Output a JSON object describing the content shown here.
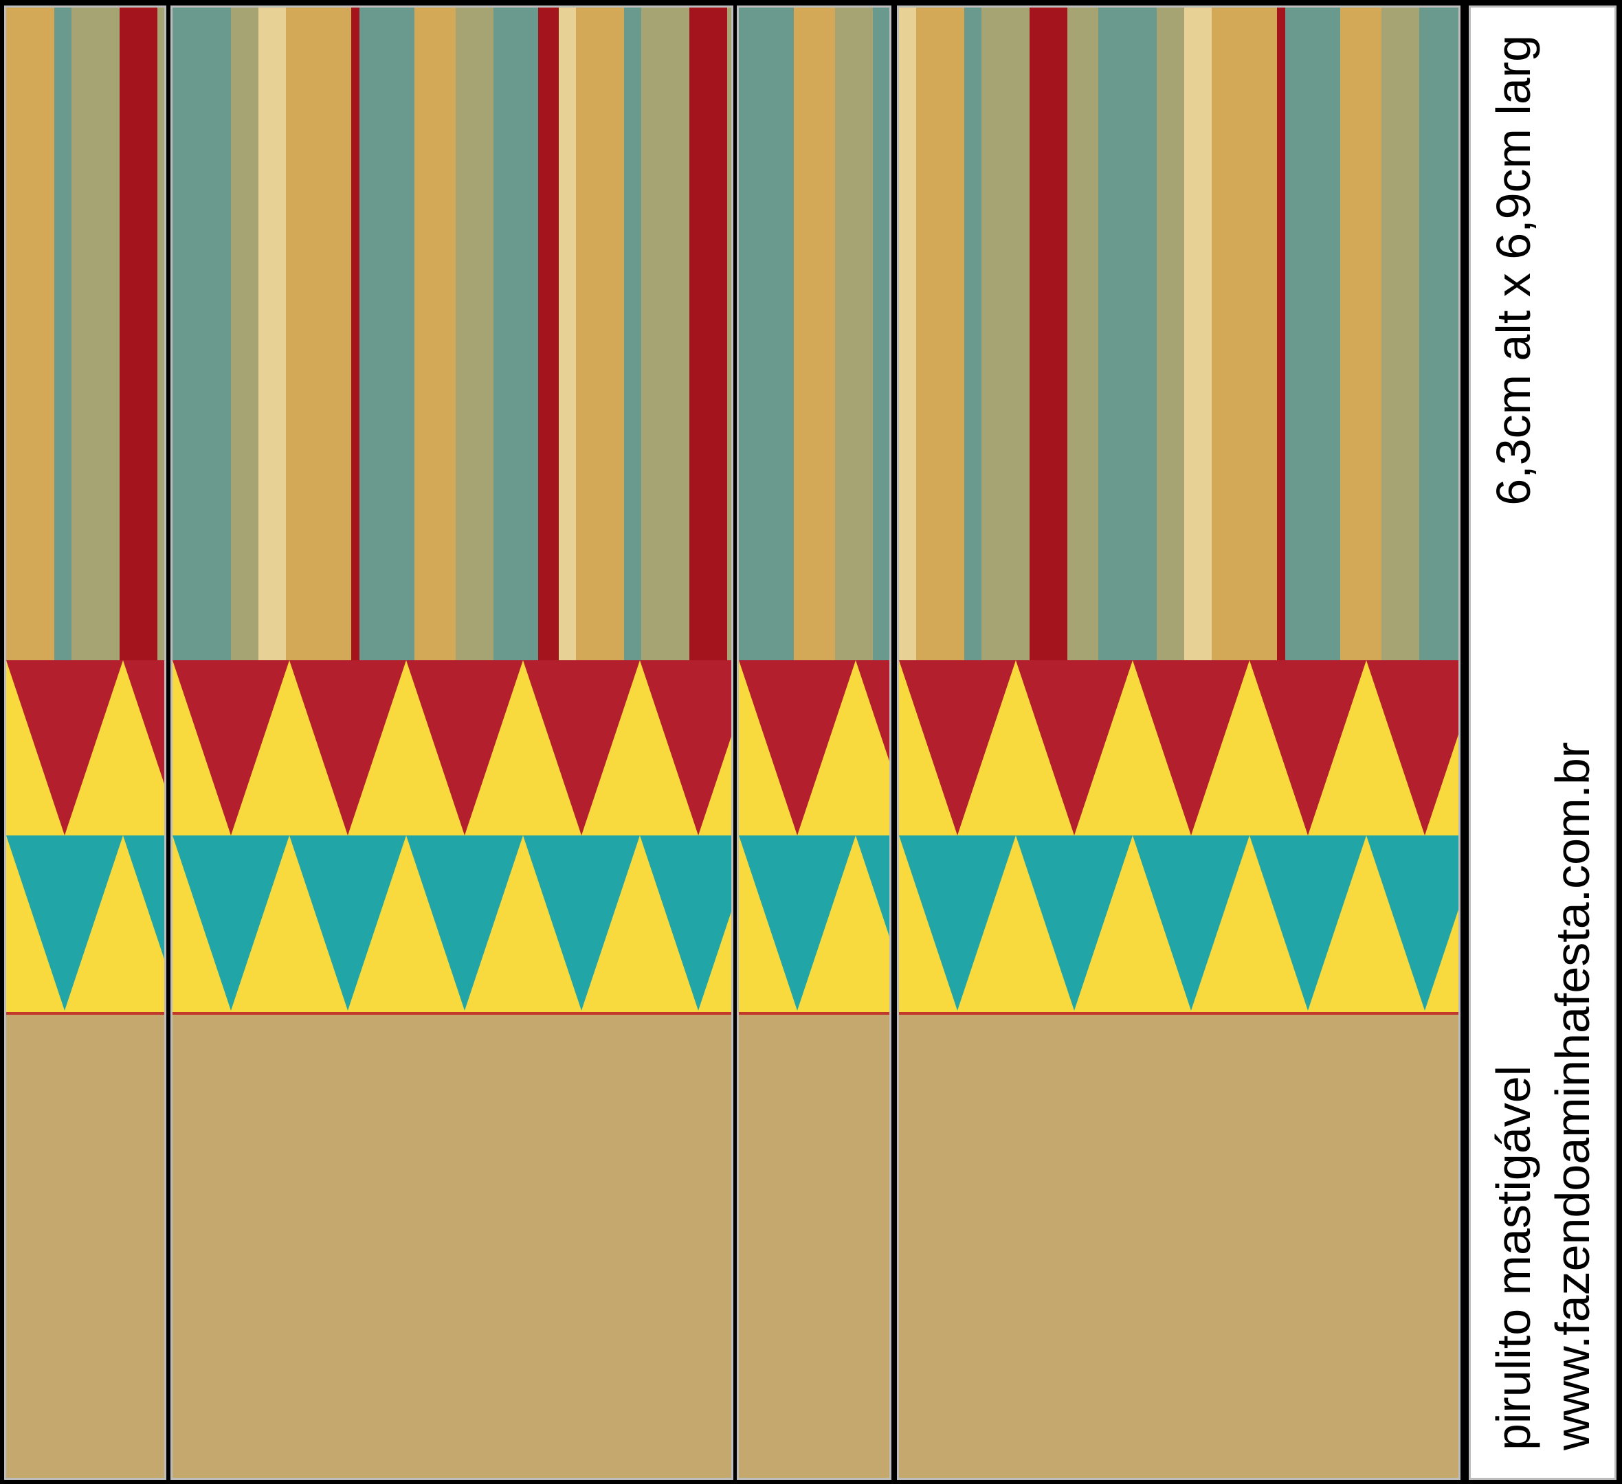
{
  "label": {
    "product": "pirulito mastigável",
    "size": "6,3cm alt x 6,9cm larg",
    "website": "www.fazendoaminhafesta.com.br"
  },
  "colors": {
    "background": "#000000",
    "panel_border": "#bdbdbd",
    "stripe_red": "#a3141d",
    "stripe_teal": "#6a9a8e",
    "stripe_olive": "#a6a473",
    "stripe_gold": "#d3a957",
    "stripe_cream": "#e8d194",
    "pennant_red": "#b41f2e",
    "pennant_teal": "#22a5a7",
    "pennant_yellow": "#f8da3e",
    "bottom_tan": "#c4a86e",
    "divider_red": "#c0392b"
  },
  "icons": {
    "stripes": "vertical-stripes-pattern",
    "bunting": "triangle-bunting-pattern"
  }
}
